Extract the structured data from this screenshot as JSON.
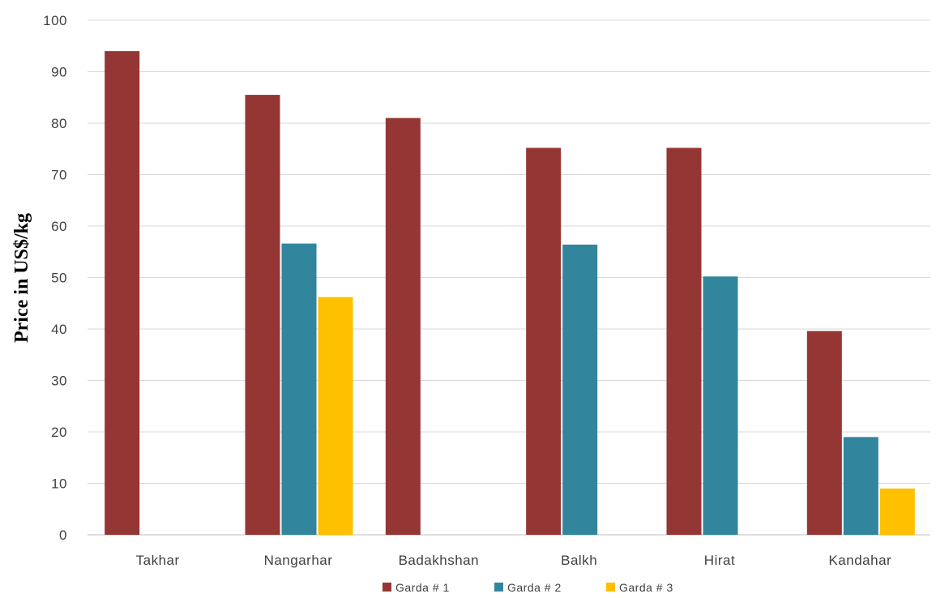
{
  "chart_data": {
    "type": "bar",
    "title": "",
    "xlabel": "",
    "ylabel": "Price in US$/kg",
    "ylim": [
      0,
      100
    ],
    "yticks": [
      0,
      10,
      20,
      30,
      40,
      50,
      60,
      70,
      80,
      90,
      100
    ],
    "grid": true,
    "legend_position": "bottom",
    "categories": [
      "Takhar",
      "Nangarhar",
      "Badakhshan",
      "Balkh",
      "Hirat",
      "Kandahar"
    ],
    "series": [
      {
        "name": "Garda # 1",
        "color": "#943634",
        "values": [
          94,
          85.5,
          81,
          75.2,
          75.2,
          39.6
        ]
      },
      {
        "name": "Garda # 2",
        "color": "#31859c",
        "values": [
          null,
          56.6,
          null,
          56.4,
          50.2,
          19
        ]
      },
      {
        "name": "Garda # 3",
        "color": "#ffc000",
        "values": [
          null,
          46.2,
          null,
          null,
          null,
          9
        ]
      }
    ]
  }
}
